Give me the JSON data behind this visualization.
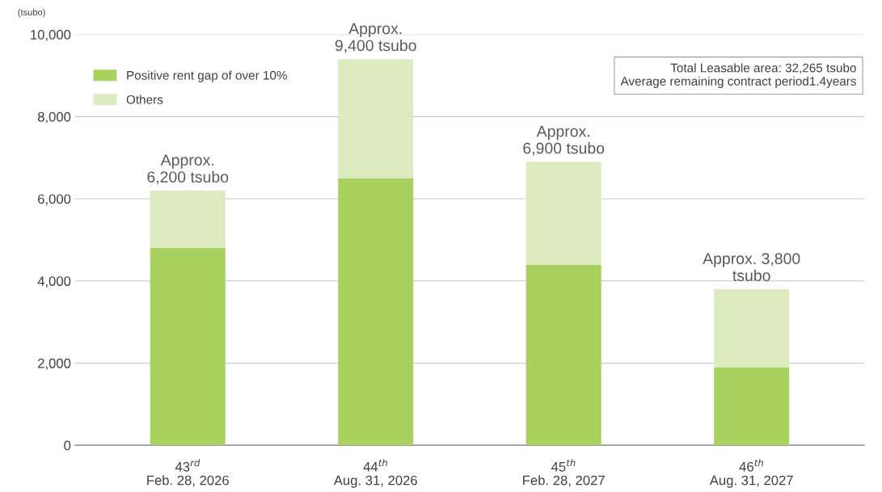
{
  "chart_data": {
    "type": "bar",
    "stacked": true,
    "ylabel": "(tsubo)",
    "categories": [
      "43$^{rd}$\nFeb. 28, 2026",
      "44$^{th}$\nAug. 31, 2026",
      "45$^{th}$\nFeb. 28, 2027",
      "46$^{th}$\nAug. 31, 2027"
    ],
    "series": [
      {
        "name": "Positive rent gap of over 10%",
        "color": "#a9d15f",
        "values": [
          4800,
          6500,
          4400,
          1900
        ]
      },
      {
        "name": "Others",
        "color": "#dcebc0",
        "values": [
          1400,
          2900,
          2500,
          1900
        ]
      }
    ],
    "totals": [
      "Approx.\n6,200 tsubo",
      "Approx.\n9,400 tsubo",
      "Approx.\n6,900 tsubo",
      "Approx. 3,800\ntsubo"
    ],
    "annotations": [
      "Total Leasable area: 32,265 tsubo\nAverage remaining contract period1.4years"
    ],
    "ylim": [
      0,
      10000
    ],
    "yticks": [
      0,
      {
        "value": 2000,
        "label": "2,000"
      },
      {
        "value": 4000,
        "label": "4,000"
      },
      {
        "value": 6000,
        "label": "6,000"
      },
      {
        "value": 8000,
        "label": "8,000"
      },
      {
        "value": 10000,
        "label": "10,000"
      }
    ],
    "grid": "y",
    "legend": "top left"
  }
}
